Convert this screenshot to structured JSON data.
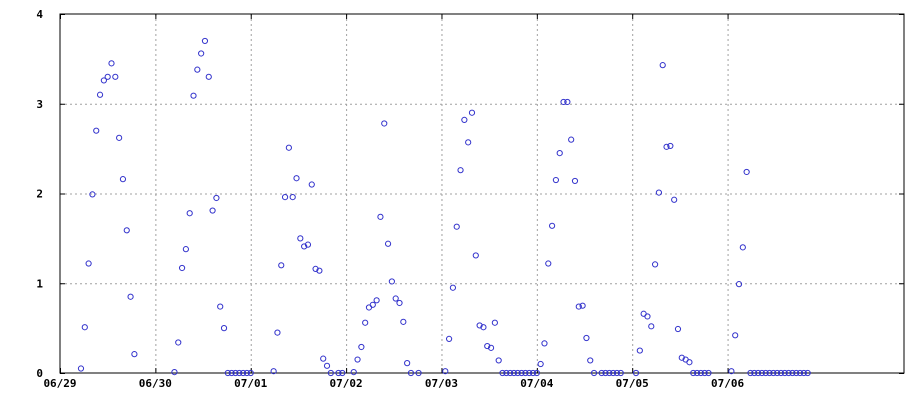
{
  "chart_data": {
    "type": "scatter",
    "title": "",
    "xlabel": "",
    "ylabel": "",
    "x_unit": "day",
    "xlim": [
      0,
      8.85
    ],
    "ylim": [
      0,
      4
    ],
    "grid": true,
    "legend": "none",
    "marker": "open-circle",
    "colors": {
      "marker": "#3333cc",
      "grid": "#a0a0a0",
      "axis": "#000000",
      "background": "#ffffff"
    },
    "x_ticks": [
      {
        "value": 0,
        "label": "06/29"
      },
      {
        "value": 1,
        "label": "06/30"
      },
      {
        "value": 2,
        "label": "07/01"
      },
      {
        "value": 3,
        "label": "07/02"
      },
      {
        "value": 4,
        "label": "07/03"
      },
      {
        "value": 5,
        "label": "07/04"
      },
      {
        "value": 6,
        "label": "07/05"
      },
      {
        "value": 7,
        "label": "07/06"
      }
    ],
    "y_ticks": [
      {
        "value": 0,
        "label": "0"
      },
      {
        "value": 1,
        "label": "1"
      },
      {
        "value": 2,
        "label": "2"
      },
      {
        "value": 3,
        "label": "3"
      },
      {
        "value": 4,
        "label": "4"
      }
    ],
    "series": [
      {
        "points": [
          [
            0.22,
            0.05
          ],
          [
            0.26,
            0.51
          ],
          [
            0.3,
            1.22
          ],
          [
            0.34,
            1.99
          ],
          [
            0.38,
            2.7
          ],
          [
            0.42,
            3.1
          ],
          [
            0.46,
            3.26
          ],
          [
            0.5,
            3.3
          ],
          [
            0.54,
            3.45
          ],
          [
            0.58,
            3.3
          ],
          [
            0.62,
            2.62
          ],
          [
            0.66,
            2.16
          ],
          [
            0.7,
            1.59
          ],
          [
            0.74,
            0.85
          ],
          [
            0.78,
            0.21
          ],
          [
            1.2,
            0.01
          ],
          [
            1.24,
            0.34
          ],
          [
            1.28,
            1.17
          ],
          [
            1.32,
            1.38
          ],
          [
            1.36,
            1.78
          ],
          [
            1.4,
            3.09
          ],
          [
            1.44,
            3.38
          ],
          [
            1.48,
            3.56
          ],
          [
            1.52,
            3.7
          ],
          [
            1.56,
            3.3
          ],
          [
            1.6,
            1.81
          ],
          [
            1.64,
            1.95
          ],
          [
            1.68,
            0.74
          ],
          [
            1.72,
            0.5
          ],
          [
            1.76,
            0.0
          ],
          [
            1.8,
            0.0
          ],
          [
            1.84,
            0.0
          ],
          [
            1.88,
            0.0
          ],
          [
            1.92,
            0.0
          ],
          [
            1.96,
            0.0
          ],
          [
            2.0,
            0.0
          ],
          [
            2.24,
            0.02
          ],
          [
            2.28,
            0.45
          ],
          [
            2.32,
            1.2
          ],
          [
            2.36,
            1.96
          ],
          [
            2.4,
            2.51
          ],
          [
            2.44,
            1.96
          ],
          [
            2.48,
            2.17
          ],
          [
            2.52,
            1.5
          ],
          [
            2.56,
            1.41
          ],
          [
            2.6,
            1.43
          ],
          [
            2.64,
            2.1
          ],
          [
            2.68,
            1.16
          ],
          [
            2.72,
            1.14
          ],
          [
            2.76,
            0.16
          ],
          [
            2.8,
            0.08
          ],
          [
            2.84,
            0.0
          ],
          [
            2.92,
            0.0
          ],
          [
            2.96,
            0.0
          ],
          [
            3.08,
            0.01
          ],
          [
            3.12,
            0.15
          ],
          [
            3.16,
            0.29
          ],
          [
            3.2,
            0.56
          ],
          [
            3.24,
            0.73
          ],
          [
            3.28,
            0.76
          ],
          [
            3.32,
            0.81
          ],
          [
            3.36,
            1.74
          ],
          [
            3.4,
            2.78
          ],
          [
            3.44,
            1.44
          ],
          [
            3.48,
            1.02
          ],
          [
            3.52,
            0.83
          ],
          [
            3.56,
            0.78
          ],
          [
            3.6,
            0.57
          ],
          [
            3.64,
            0.11
          ],
          [
            3.68,
            0.0
          ],
          [
            3.76,
            0.0
          ],
          [
            4.04,
            0.02
          ],
          [
            4.08,
            0.38
          ],
          [
            4.12,
            0.95
          ],
          [
            4.16,
            1.63
          ],
          [
            4.2,
            2.26
          ],
          [
            4.24,
            2.82
          ],
          [
            4.28,
            2.57
          ],
          [
            4.32,
            2.9
          ],
          [
            4.36,
            1.31
          ],
          [
            4.4,
            0.53
          ],
          [
            4.44,
            0.51
          ],
          [
            4.48,
            0.3
          ],
          [
            4.52,
            0.28
          ],
          [
            4.56,
            0.56
          ],
          [
            4.6,
            0.14
          ],
          [
            4.64,
            0.0
          ],
          [
            4.68,
            0.0
          ],
          [
            4.72,
            0.0
          ],
          [
            4.76,
            0.0
          ],
          [
            4.8,
            0.0
          ],
          [
            4.84,
            0.0
          ],
          [
            4.88,
            0.0
          ],
          [
            4.92,
            0.0
          ],
          [
            4.96,
            0.0
          ],
          [
            5.0,
            0.0
          ],
          [
            5.04,
            0.1
          ],
          [
            5.08,
            0.33
          ],
          [
            5.12,
            1.22
          ],
          [
            5.16,
            1.64
          ],
          [
            5.2,
            2.15
          ],
          [
            5.24,
            2.45
          ],
          [
            5.28,
            3.02
          ],
          [
            5.32,
            3.02
          ],
          [
            5.36,
            2.6
          ],
          [
            5.4,
            2.14
          ],
          [
            5.44,
            0.74
          ],
          [
            5.48,
            0.75
          ],
          [
            5.52,
            0.39
          ],
          [
            5.56,
            0.14
          ],
          [
            5.6,
            0.0
          ],
          [
            5.68,
            0.0
          ],
          [
            5.72,
            0.0
          ],
          [
            5.76,
            0.0
          ],
          [
            5.8,
            0.0
          ],
          [
            5.84,
            0.0
          ],
          [
            5.88,
            0.0
          ],
          [
            6.04,
            0.0
          ],
          [
            6.08,
            0.25
          ],
          [
            6.12,
            0.66
          ],
          [
            6.16,
            0.63
          ],
          [
            6.2,
            0.52
          ],
          [
            6.24,
            1.21
          ],
          [
            6.28,
            2.01
          ],
          [
            6.32,
            3.43
          ],
          [
            6.36,
            2.52
          ],
          [
            6.4,
            2.53
          ],
          [
            6.44,
            1.93
          ],
          [
            6.48,
            0.49
          ],
          [
            6.52,
            0.17
          ],
          [
            6.56,
            0.15
          ],
          [
            6.6,
            0.12
          ],
          [
            6.64,
            0.0
          ],
          [
            6.68,
            0.0
          ],
          [
            6.72,
            0.0
          ],
          [
            6.76,
            0.0
          ],
          [
            6.8,
            0.0
          ],
          [
            7.04,
            0.02
          ],
          [
            7.08,
            0.42
          ],
          [
            7.12,
            0.99
          ],
          [
            7.16,
            1.4
          ],
          [
            7.2,
            2.24
          ],
          [
            7.24,
            0.0
          ],
          [
            7.28,
            0.0
          ],
          [
            7.32,
            0.0
          ],
          [
            7.36,
            0.0
          ],
          [
            7.4,
            0.0
          ],
          [
            7.44,
            0.0
          ],
          [
            7.48,
            0.0
          ],
          [
            7.52,
            0.0
          ],
          [
            7.56,
            0.0
          ],
          [
            7.6,
            0.0
          ],
          [
            7.64,
            0.0
          ],
          [
            7.68,
            0.0
          ],
          [
            7.72,
            0.0
          ],
          [
            7.76,
            0.0
          ],
          [
            7.8,
            0.0
          ],
          [
            7.84,
            0.0
          ]
        ]
      }
    ]
  }
}
